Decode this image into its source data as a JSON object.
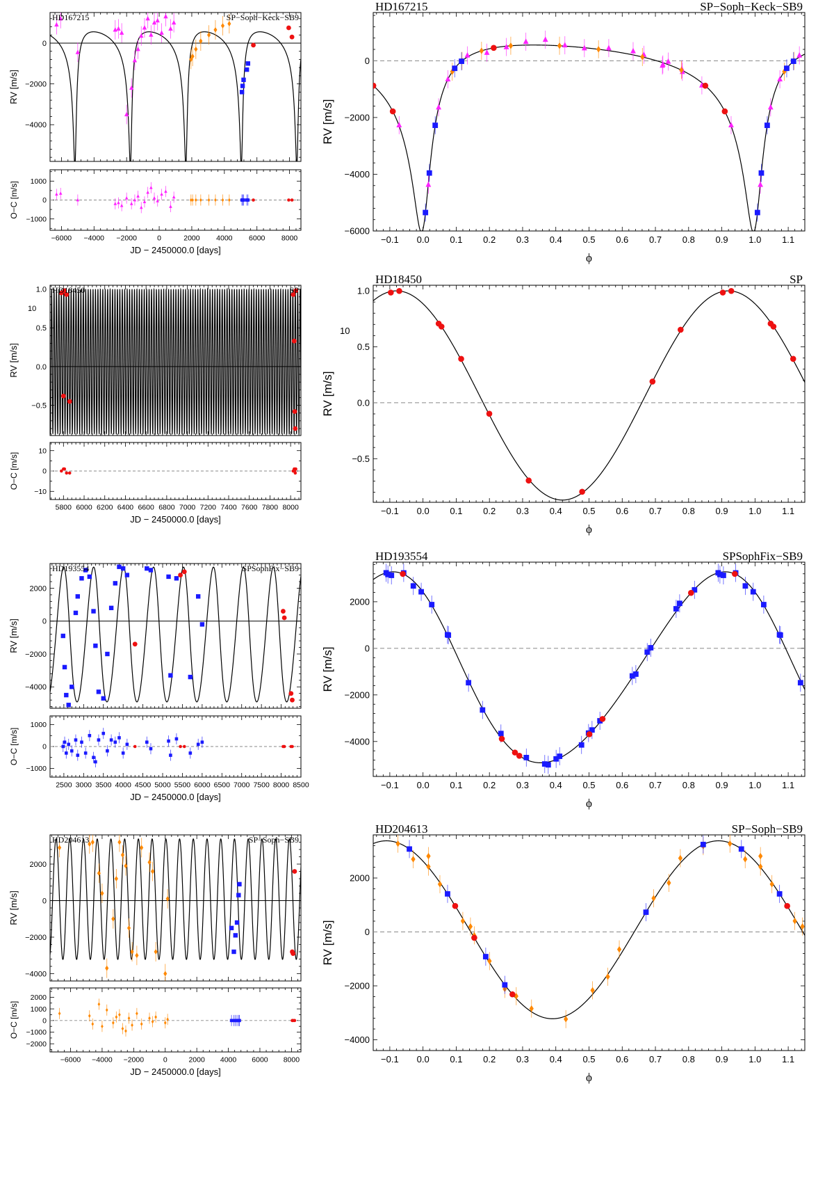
{
  "colors": {
    "sophie_blue": "#1a1aff",
    "sophie_new_red": "#ee1111",
    "keck_magenta": "#ff22ff",
    "sb9_orange": "#ff8800",
    "curve": "#000000"
  },
  "chart_data": [
    {
      "type": "scatter",
      "panel": "time",
      "star": "HD167215",
      "instruments": "SP−Soph−Keck−SB9",
      "xlabel": "JD − 2450000.0 [days]",
      "ylabel": "RV [m/s]",
      "resid_ylabel": "O−C [m/s]",
      "xlim": [
        -6700,
        8700
      ],
      "ylim": [
        -5800,
        1500
      ],
      "resid_ylim": [
        -1600,
        1600
      ],
      "xticks": [
        "−6000",
        "−4000",
        "−2000",
        "0",
        "2000",
        "4000",
        "6000",
        "8000"
      ],
      "yticks": [
        "−4000",
        "−2000",
        "0"
      ],
      "resid_yticks": [
        "−1000",
        "0",
        "1000"
      ],
      "model": {
        "kind": "kepler",
        "P": 3405,
        "e": 0.72,
        "omega": 195,
        "K": 3300,
        "gamma": -450,
        "tp": 1650
      }
    },
    {
      "type": "scatter",
      "panel": "phase",
      "star": "HD167215",
      "instruments": "SP−Soph−Keck−SB9",
      "xlabel": "ϕ",
      "ylabel": "RV [m/s]",
      "xlim": [
        -0.15,
        1.15
      ],
      "ylim": [
        -6000,
        1700
      ],
      "xticks": [
        "−0.1",
        "0.0",
        "0.1",
        "0.2",
        "0.3",
        "0.4",
        "0.5",
        "0.6",
        "0.7",
        "0.8",
        "0.9",
        "1.0",
        "1.1"
      ],
      "yticks": [
        "−6000",
        "−4000",
        "−2000",
        "0"
      ],
      "model": {
        "kind": "kepler",
        "P": 1,
        "e": 0.72,
        "omega": 195,
        "K": 3300,
        "gamma": -450,
        "tp": 0
      }
    },
    {
      "type": "scatter",
      "panel": "time",
      "star": "HD18450",
      "instruments": "SP",
      "xlabel": "JD − 2450000.0 [days]",
      "ylabel": "RV [m/s]",
      "resid_ylabel": "O−C [m/s]",
      "y_multiplier": "10+4",
      "xlim": [
        5670,
        8100
      ],
      "ylim": [
        -0.89,
        1.05
      ],
      "resid_ylim": [
        -14,
        14
      ],
      "xticks": [
        "5800",
        "6000",
        "6200",
        "6400",
        "6600",
        "6800",
        "7000",
        "7200",
        "7400",
        "7600",
        "7800",
        "8000"
      ],
      "yticks": [
        "−0.5",
        "0.0",
        "0.5",
        "1.0"
      ],
      "resid_yticks": [
        "−10",
        "0",
        "10"
      ],
      "model": {
        "kind": "sine",
        "P": 23.6,
        "K": 0.935,
        "gamma": 0.065,
        "t0": 5827
      }
    },
    {
      "type": "scatter",
      "panel": "phase",
      "star": "HD18450",
      "instruments": "SP",
      "xlabel": "ϕ",
      "ylabel": "RV [m/s]",
      "y_multiplier": "10+4",
      "xlim": [
        -0.15,
        1.15
      ],
      "ylim": [
        -0.89,
        1.05
      ],
      "xticks": [
        "−0.1",
        "0.0",
        "0.1",
        "0.2",
        "0.3",
        "0.4",
        "0.5",
        "0.6",
        "0.7",
        "0.8",
        "0.9",
        "1.0",
        "1.1"
      ],
      "yticks": [
        "−0.5",
        "0.0",
        "0.5",
        "1.0"
      ],
      "model": {
        "kind": "sine",
        "P": 1,
        "K": 0.935,
        "gamma": 0.065,
        "t0": -0.08
      }
    },
    {
      "type": "scatter",
      "panel": "time",
      "star": "HD193554",
      "instruments": "SPSophFix−SB9",
      "xlabel": "JD − 2450000.0 [days]",
      "ylabel": "RV [m/s]",
      "resid_ylabel": "O−C [m/s]",
      "xlim": [
        2150,
        8500
      ],
      "ylim": [
        -5300,
        3500
      ],
      "resid_ylim": [
        -1400,
        1400
      ],
      "xticks": [
        "2500",
        "3000",
        "3500",
        "4000",
        "4500",
        "5000",
        "5500",
        "6000",
        "6500",
        "7000",
        "7500",
        "8000",
        "8500"
      ],
      "yticks": [
        "−4000",
        "−2000",
        "0",
        "2000"
      ],
      "resid_yticks": [
        "−1000",
        "0",
        "1000"
      ],
      "model": {
        "kind": "kepler",
        "P": 758,
        "e": 0.1,
        "omega": 60,
        "K": 4100,
        "gamma": -1020,
        "tp": 2602
      }
    },
    {
      "type": "scatter",
      "panel": "phase",
      "star": "HD193554",
      "instruments": "SPSophFix−SB9",
      "xlabel": "ϕ",
      "ylabel": "RV [m/s]",
      "xlim": [
        -0.15,
        1.15
      ],
      "ylim": [
        -5500,
        3700
      ],
      "xticks": [
        "−0.1",
        "0.0",
        "0.1",
        "0.2",
        "0.3",
        "0.4",
        "0.5",
        "0.6",
        "0.7",
        "0.8",
        "0.9",
        "1.0",
        "1.1"
      ],
      "yticks": [
        "−4000",
        "−2000",
        "0",
        "2000"
      ],
      "model": {
        "kind": "kepler",
        "P": 1,
        "e": 0.1,
        "omega": 60,
        "K": 4100,
        "gamma": -1020,
        "tp": 0.05
      }
    },
    {
      "type": "scatter",
      "panel": "time",
      "star": "HD204613",
      "instruments": "SP−Soph−SB9",
      "xlabel": "JD − 2450000.0 [days]",
      "ylabel": "RV [m/s]",
      "resid_ylabel": "O−C [m/s]",
      "xlim": [
        -7300,
        8600
      ],
      "ylim": [
        -4400,
        3600
      ],
      "resid_ylim": [
        -2700,
        2800
      ],
      "xticks": [
        "−6000",
        "−4000",
        "−2000",
        "0",
        "2000",
        "4000",
        "6000",
        "8000"
      ],
      "yticks": [
        "−4000",
        "−2000",
        "0",
        "2000"
      ],
      "resid_yticks": [
        "−2000",
        "−1000",
        "0",
        "1000",
        "2000"
      ],
      "model": {
        "kind": "sine",
        "P": 870,
        "K": 3300,
        "gamma": 80,
        "t0": -6920
      }
    },
    {
      "type": "scatter",
      "panel": "phase",
      "star": "HD204613",
      "instruments": "SP−Soph−SB9",
      "xlabel": "ϕ",
      "ylabel": "RV [m/s]",
      "xlim": [
        -0.15,
        1.15
      ],
      "ylim": [
        -4400,
        3600
      ],
      "xticks": [
        "−0.1",
        "0.0",
        "0.1",
        "0.2",
        "0.3",
        "0.4",
        "0.5",
        "0.6",
        "0.7",
        "0.8",
        "0.9",
        "1.0",
        "1.1"
      ],
      "yticks": [
        "−4000",
        "−2000",
        "0",
        "2000"
      ],
      "model": {
        "kind": "sine",
        "P": 1,
        "K": 3300,
        "gamma": 80,
        "t0": -0.11
      }
    }
  ],
  "observations": {
    "HD167215": {
      "keck": [
        {
          "x": -6300,
          "y": 900,
          "r": 300
        },
        {
          "x": -6050,
          "y": 1200,
          "r": 350
        },
        {
          "x": -5000,
          "y": -450,
          "r": 0
        },
        {
          "x": -2700,
          "y": 650,
          "r": -200
        },
        {
          "x": -2500,
          "y": 700,
          "r": -150
        },
        {
          "x": -2300,
          "y": 500,
          "r": -300
        },
        {
          "x": -2000,
          "y": -3500,
          "r": 100
        },
        {
          "x": -1700,
          "y": -2200,
          "r": -200
        },
        {
          "x": -1500,
          "y": -850,
          "r": 0
        },
        {
          "x": -1300,
          "y": -300,
          "r": 200
        },
        {
          "x": -1100,
          "y": 350,
          "r": -400
        },
        {
          "x": -900,
          "y": 750,
          "r": -100
        },
        {
          "x": -700,
          "y": 1200,
          "r": 400
        },
        {
          "x": -500,
          "y": 400,
          "r": 650
        },
        {
          "x": -300,
          "y": 1000,
          "r": 100
        },
        {
          "x": -100,
          "y": 1100,
          "r": -50
        },
        {
          "x": 150,
          "y": 500,
          "r": 300
        },
        {
          "x": 400,
          "y": 1300,
          "r": 450
        },
        {
          "x": 700,
          "y": 700,
          "r": -350
        },
        {
          "x": 900,
          "y": 1000,
          "r": 150
        }
      ],
      "sb9": [
        {
          "x": 1950,
          "y": -800,
          "r": 0
        },
        {
          "x": 2050,
          "y": -650,
          "r": 0
        },
        {
          "x": 2250,
          "y": -300,
          "r": 0
        },
        {
          "x": 2550,
          "y": 100,
          "r": 0
        },
        {
          "x": 3050,
          "y": 400,
          "r": 0
        },
        {
          "x": 3450,
          "y": 650,
          "r": 0
        },
        {
          "x": 3900,
          "y": 850,
          "r": 0
        },
        {
          "x": 4300,
          "y": 950,
          "r": 0
        }
      ],
      "sophie": [
        {
          "x": 5080,
          "y": -2400,
          "r": 0
        },
        {
          "x": 5120,
          "y": -2100,
          "r": 0
        },
        {
          "x": 5180,
          "y": -1800,
          "r": 0
        },
        {
          "x": 5380,
          "y": -1300,
          "r": 0
        },
        {
          "x": 5450,
          "y": -1000,
          "r": 0
        }
      ],
      "sp": [
        {
          "x": 5780,
          "y": -100,
          "r": 0
        },
        {
          "x": 7950,
          "y": 750,
          "r": 0
        },
        {
          "x": 8150,
          "y": 300,
          "r": 0
        }
      ]
    },
    "HD18450": {
      "sp": [
        {
          "x": 5780,
          "y": 0.95,
          "r": 0
        },
        {
          "x": 5810,
          "y": 0.98,
          "r": 1
        },
        {
          "x": 5830,
          "y": 0.93,
          "r": -1
        },
        {
          "x": 5800,
          "y": -0.38,
          "r": 1
        },
        {
          "x": 5860,
          "y": -0.45,
          "r": -1
        },
        {
          "x": 8025,
          "y": 0.93,
          "r": 0
        },
        {
          "x": 8035,
          "y": 0.33,
          "r": 1
        },
        {
          "x": 8040,
          "y": -0.58,
          "r": 0
        },
        {
          "x": 8045,
          "y": -0.8,
          "r": -1
        },
        {
          "x": 8050,
          "y": 0.98,
          "r": 1
        }
      ]
    },
    "HD193554": {
      "sophie": [
        {
          "x": 2480,
          "y": -900,
          "r": 0
        },
        {
          "x": 2520,
          "y": -2800,
          "r": 200
        },
        {
          "x": 2560,
          "y": -4500,
          "r": -300
        },
        {
          "x": 2620,
          "y": -5100,
          "r": 100
        },
        {
          "x": 2700,
          "y": -4000,
          "r": -200
        },
        {
          "x": 2800,
          "y": 500,
          "r": 300
        },
        {
          "x": 2850,
          "y": 1500,
          "r": -400
        },
        {
          "x": 2950,
          "y": 2600,
          "r": 200
        },
        {
          "x": 3050,
          "y": 3100,
          "r": -300
        },
        {
          "x": 3150,
          "y": 2700,
          "r": 500
        },
        {
          "x": 3250,
          "y": 600,
          "r": -500
        },
        {
          "x": 3300,
          "y": -1500,
          "r": -700
        },
        {
          "x": 3380,
          "y": -4300,
          "r": 300
        },
        {
          "x": 3500,
          "y": -4700,
          "r": 600
        },
        {
          "x": 3600,
          "y": -2000,
          "r": -200
        },
        {
          "x": 3700,
          "y": 800,
          "r": 300
        },
        {
          "x": 3800,
          "y": 2300,
          "r": 200
        },
        {
          "x": 3900,
          "y": 3300,
          "r": 400
        },
        {
          "x": 4000,
          "y": 3200,
          "r": -300
        },
        {
          "x": 4100,
          "y": 2800,
          "r": 100
        },
        {
          "x": 4600,
          "y": 3200,
          "r": 200
        },
        {
          "x": 4700,
          "y": 3100,
          "r": -100
        },
        {
          "x": 5150,
          "y": 2700,
          "r": 250
        },
        {
          "x": 5200,
          "y": -3300,
          "r": -400
        },
        {
          "x": 5350,
          "y": 2600,
          "r": 350
        },
        {
          "x": 5700,
          "y": -3400,
          "r": -300
        },
        {
          "x": 5900,
          "y": 1500,
          "r": 100
        },
        {
          "x": 6000,
          "y": -200,
          "r": 200
        }
      ],
      "sp": [
        {
          "x": 4300,
          "y": -1400,
          "r": 0
        },
        {
          "x": 5450,
          "y": 2800,
          "r": 0
        },
        {
          "x": 5550,
          "y": 3000,
          "r": 0
        },
        {
          "x": 8050,
          "y": 600,
          "r": 0
        },
        {
          "x": 8080,
          "y": 200,
          "r": 0
        },
        {
          "x": 8250,
          "y": -4400,
          "r": 0
        },
        {
          "x": 8280,
          "y": -4800,
          "r": 0
        }
      ]
    },
    "HD204613": {
      "sb9": [
        {
          "x": -6700,
          "y": 2900,
          "r": 600
        },
        {
          "x": -4800,
          "y": 3100,
          "r": 400
        },
        {
          "x": -4600,
          "y": 3200,
          "r": -300
        },
        {
          "x": -4200,
          "y": 1500,
          "r": 1400
        },
        {
          "x": -4000,
          "y": 400,
          "r": -500
        },
        {
          "x": -3700,
          "y": -3700,
          "r": 900
        },
        {
          "x": -3300,
          "y": -1000,
          "r": -200
        },
        {
          "x": -3100,
          "y": 1200,
          "r": 300
        },
        {
          "x": -2900,
          "y": 3200,
          "r": 500
        },
        {
          "x": -2700,
          "y": 2500,
          "r": -700
        },
        {
          "x": -2500,
          "y": 1900,
          "r": -900
        },
        {
          "x": -2300,
          "y": -1500,
          "r": 200
        },
        {
          "x": -2100,
          "y": -2800,
          "r": -400
        },
        {
          "x": -1800,
          "y": -3000,
          "r": 600
        },
        {
          "x": -1500,
          "y": 2900,
          "r": -300
        },
        {
          "x": -1000,
          "y": 2100,
          "r": 200
        },
        {
          "x": -800,
          "y": 1600,
          "r": -100
        },
        {
          "x": -600,
          "y": -2800,
          "r": 300
        },
        {
          "x": 0,
          "y": -4000,
          "r": -200
        },
        {
          "x": 150,
          "y": 100,
          "r": 100
        }
      ],
      "sophie": [
        {
          "x": 4200,
          "y": -1500,
          "r": 0
        },
        {
          "x": 4350,
          "y": -2800,
          "r": 0
        },
        {
          "x": 4450,
          "y": -1900,
          "r": 0
        },
        {
          "x": 4550,
          "y": -1200,
          "r": 0
        },
        {
          "x": 4650,
          "y": 300,
          "r": 0
        },
        {
          "x": 4700,
          "y": 900,
          "r": 0
        }
      ],
      "sp": [
        {
          "x": 8050,
          "y": -2800,
          "r": 0
        },
        {
          "x": 8100,
          "y": -2900,
          "r": 0
        },
        {
          "x": 8200,
          "y": 1600,
          "r": 0
        }
      ]
    }
  }
}
